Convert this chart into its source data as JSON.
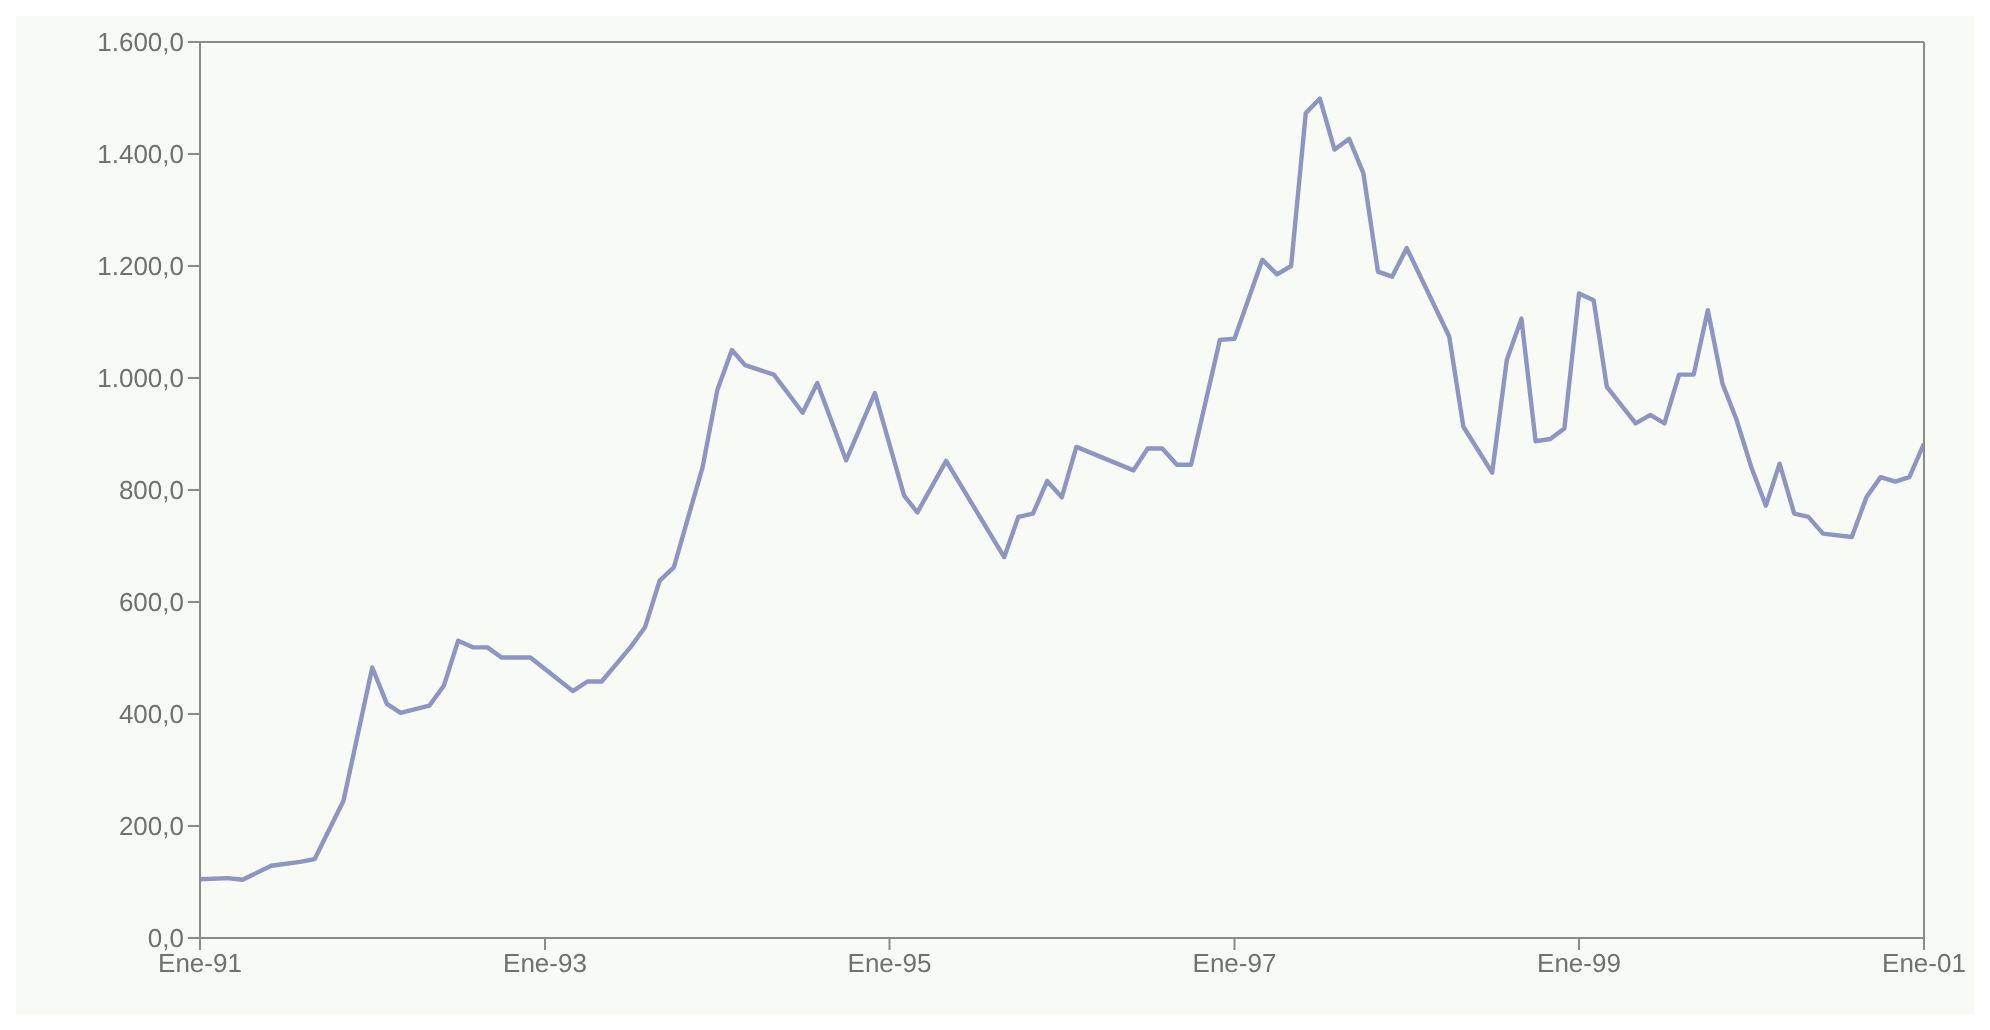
{
  "chart_data": {
    "type": "line",
    "x": [
      "1991-01",
      "1991-03",
      "1991-04",
      "1991-06",
      "1991-08",
      "1991-09",
      "1991-11",
      "1992-01",
      "1992-02",
      "1992-03",
      "1992-05",
      "1992-06",
      "1992-07",
      "1992-08",
      "1992-09",
      "1992-10",
      "1992-12",
      "1993-03",
      "1993-04",
      "1993-05",
      "1993-07",
      "1993-08",
      "1993-09",
      "1993-10",
      "1993-12",
      "1994-01",
      "1994-02",
      "1994-03",
      "1994-05",
      "1994-07",
      "1994-08",
      "1994-10",
      "1994-12",
      "1995-02",
      "1995-03",
      "1995-05",
      "1995-09",
      "1995-10",
      "1995-11",
      "1995-12",
      "1996-01",
      "1996-02",
      "1996-06",
      "1996-07",
      "1996-08",
      "1996-09",
      "1996-10",
      "1996-12",
      "1997-01",
      "1997-03",
      "1997-04",
      "1997-05",
      "1997-06",
      "1997-07",
      "1997-08",
      "1997-09",
      "1997-10",
      "1997-11",
      "1997-12",
      "1998-01",
      "1998-04",
      "1998-05",
      "1998-07",
      "1998-08",
      "1998-09",
      "1998-10",
      "1998-11",
      "1998-12",
      "1999-01",
      "1999-02",
      "1999-03",
      "1999-05",
      "1999-06",
      "1999-07",
      "1999-08",
      "1999-09",
      "1999-10",
      "1999-11",
      "1999-12",
      "2000-01",
      "2000-02",
      "2000-03",
      "2000-04",
      "2000-05",
      "2000-06",
      "2000-08",
      "2000-09",
      "2000-10",
      "2000-11",
      "2000-12",
      "2001-01"
    ],
    "series": [
      {
        "color": "#8c96c0",
        "values": [
          105,
          107,
          104,
          129,
          136,
          141,
          245,
          483,
          418,
          402,
          415,
          451,
          531,
          519,
          519,
          501,
          501,
          441,
          458,
          458,
          519,
          555,
          638,
          662,
          841,
          978,
          1050,
          1023,
          1006,
          938,
          991,
          853,
          973,
          790,
          760,
          852,
          680,
          752,
          758,
          816,
          787,
          877,
          835,
          874,
          874,
          845,
          845,
          1068,
          1070,
          1211,
          1185,
          1200,
          1473,
          1499,
          1408,
          1427,
          1366,
          1190,
          1181,
          1232,
          1074,
          913,
          831,
          1032,
          1106,
          887,
          891,
          910,
          1151,
          1139,
          984,
          919,
          934,
          919,
          1006,
          1006,
          1121,
          990,
          925,
          841,
          772,
          847,
          758,
          752,
          722,
          716,
          787,
          823,
          815,
          823,
          883
        ]
      }
    ],
    "xlim": [
      "1991-01",
      "2001-01"
    ],
    "xticks": [
      {
        "value": "1991-01",
        "label": "Ene-91"
      },
      {
        "value": "1993-01",
        "label": "Ene-93"
      },
      {
        "value": "1995-01",
        "label": "Ene-95"
      },
      {
        "value": "1997-01",
        "label": "Ene-97"
      },
      {
        "value": "1999-01",
        "label": "Ene-99"
      },
      {
        "value": "2001-01",
        "label": "Ene-01"
      }
    ],
    "ylim": [
      0,
      1600
    ],
    "yticks": [
      {
        "value": 0,
        "label": "0,0"
      },
      {
        "value": 200,
        "label": "200,0"
      },
      {
        "value": 400,
        "label": "400,0"
      },
      {
        "value": 600,
        "label": "600,0"
      },
      {
        "value": 800,
        "label": "800,0"
      },
      {
        "value": 1000,
        "label": "1.000,0"
      },
      {
        "value": 1200,
        "label": "1.200,0"
      },
      {
        "value": 1400,
        "label": "1.400,0"
      },
      {
        "value": 1600,
        "label": "1.600,0"
      }
    ],
    "grid": false,
    "legend": false,
    "marker": "none",
    "line_style": "solid"
  }
}
